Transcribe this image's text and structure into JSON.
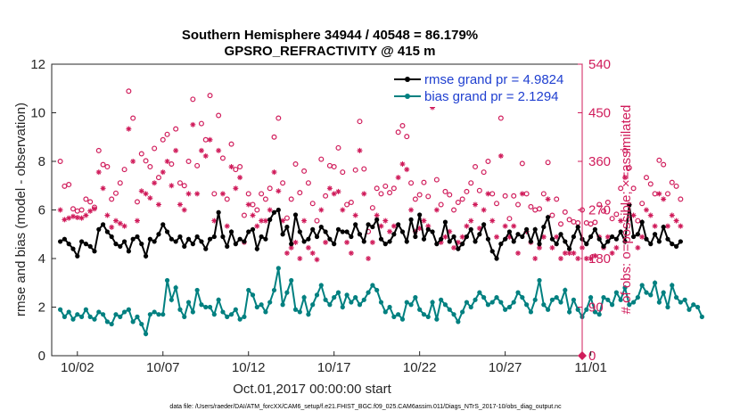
{
  "chart_data": {
    "type": "line",
    "title": "Southern Hemisphere 34944 / 40548 = 86.179%",
    "subtitle": "GPSRO_REFRACTIVITY @ 415 m",
    "xlabel": "Oct.01,2017 00:00:00 start",
    "ylabel_left": "rmse and bias (model - observation)",
    "ylabel_right": "# of obs: o=possible; ×=assimilated",
    "x_ticks": [
      "10/02",
      "10/07",
      "10/12",
      "10/17",
      "10/22",
      "10/27",
      "11/01"
    ],
    "y_left_ticks": [
      "0",
      "2",
      "4",
      "6",
      "8",
      "10",
      "12"
    ],
    "y_right_ticks": [
      "0",
      "90",
      "180",
      "270",
      "360",
      "450",
      "540"
    ],
    "ylim_left": [
      0,
      12
    ],
    "ylim_right": [
      0,
      540
    ],
    "xlim_days": [
      0.5,
      31.5
    ],
    "step_days": 0.25,
    "legend": [
      {
        "label": "rmse grand pr = 4.9824",
        "color": "#000000"
      },
      {
        "label": "bias grand pr = 2.1294",
        "color": "#008080"
      }
    ],
    "colors": {
      "rmse": "#000000",
      "bias": "#008080",
      "obs": "#d01c5b"
    },
    "series": [
      {
        "name": "rmse",
        "values": [
          4.7,
          4.8,
          4.6,
          4.4,
          4.1,
          4.7,
          4.6,
          4.5,
          4.3,
          5.2,
          5.4,
          5.1,
          4.9,
          4.6,
          4.5,
          4.7,
          4.3,
          4.8,
          4.9,
          4.6,
          4.1,
          4.8,
          4.7,
          5.0,
          5.4,
          5.1,
          4.8,
          4.7,
          4.9,
          4.5,
          4.8,
          4.6,
          4.9,
          4.7,
          4.4,
          4.8,
          4.9,
          5.9,
          4.9,
          4.5,
          5.1,
          4.6,
          4.8,
          4.7,
          5.1,
          5.2,
          4.4,
          4.9,
          4.8,
          5.6,
          5.9,
          6.0,
          5.0,
          5.3,
          4.6,
          5.8,
          5.1,
          4.7,
          4.8,
          5.2,
          4.9,
          5.3,
          5.1,
          4.8,
          4.6,
          5.2,
          5.1,
          5.1,
          4.9,
          5.4,
          5.0,
          4.7,
          5.4,
          5.3,
          5.6,
          4.8,
          4.6,
          4.7,
          5.0,
          5.4,
          5.1,
          4.7,
          5.6,
          4.9,
          5.8,
          4.8,
          5.2,
          5.1,
          4.6,
          4.8,
          5.5,
          4.7,
          4.9,
          4.4,
          4.6,
          4.9,
          5.2,
          4.7,
          5.0,
          5.4,
          4.8,
          4.3,
          4.0,
          4.6,
          4.8,
          5.1,
          4.7,
          5.0,
          4.9,
          5.2,
          4.7,
          5.2,
          4.6,
          5.3,
          5.7,
          4.8,
          4.6,
          5.0,
          4.7,
          4.4,
          4.9,
          5.3,
          4.8,
          4.6,
          4.9,
          5.2,
          4.8,
          4.5,
          4.7,
          4.9,
          4.8,
          5.1,
          4.7,
          6.2,
          4.9,
          5.0,
          5.5,
          4.8,
          4.6,
          5.0,
          4.7,
          5.3,
          4.8,
          4.6,
          4.5,
          4.7
        ]
      },
      {
        "name": "bias",
        "values": [
          1.9,
          1.6,
          1.8,
          1.5,
          1.7,
          1.6,
          1.9,
          1.6,
          1.5,
          1.8,
          1.7,
          1.4,
          1.3,
          1.7,
          1.6,
          1.8,
          1.9,
          1.4,
          1.6,
          1.3,
          0.9,
          1.7,
          1.8,
          1.7,
          1.7,
          3.1,
          2.3,
          2.8,
          1.9,
          1.6,
          2.2,
          1.8,
          2.7,
          2.1,
          2.0,
          2.0,
          1.7,
          2.3,
          1.8,
          1.6,
          1.7,
          1.9,
          1.5,
          1.6,
          2.7,
          2.5,
          2.0,
          2.1,
          1.8,
          2.2,
          2.7,
          3.6,
          2.1,
          2.6,
          3.1,
          1.9,
          1.8,
          2.4,
          1.7,
          2.1,
          2.5,
          2.9,
          2.3,
          2.1,
          2.4,
          2.6,
          2.0,
          2.5,
          2.2,
          2.4,
          2.1,
          2.3,
          2.6,
          2.9,
          2.7,
          2.2,
          1.8,
          2.0,
          1.6,
          1.7,
          1.5,
          2.2,
          2.1,
          2.4,
          1.9,
          1.7,
          1.6,
          2.2,
          1.5,
          2.3,
          2.1,
          1.9,
          1.7,
          1.4,
          1.8,
          2.2,
          2.0,
          2.3,
          2.6,
          2.4,
          2.1,
          2.2,
          2.4,
          2.2,
          1.9,
          2.0,
          2.2,
          2.6,
          2.4,
          2.1,
          1.8,
          2.3,
          3.1,
          2.1,
          1.9,
          2.3,
          2.4,
          2.2,
          2.7,
          1.8,
          2.3,
          1.9,
          1.6,
          1.9,
          2.4,
          1.8,
          1.7,
          2.4,
          2.3,
          2.1,
          2.6,
          2.3,
          2.8,
          2.1,
          2.2,
          2.4,
          2.9,
          2.6,
          2.5,
          3.0,
          2.2,
          2.6,
          2.0,
          2.9,
          2.4,
          2.2,
          2.3,
          1.9,
          2.1,
          2.0,
          1.6
        ]
      },
      {
        "name": "possible_obs",
        "values": [
          360,
          314,
          317,
          272,
          268,
          270,
          290,
          285,
          275,
          380,
          354,
          350,
          290,
          301,
          320,
          345,
          490,
          440,
          285,
          374,
          361,
          350,
          384,
          330,
          400,
          410,
          355,
          420,
          320,
          315,
          360,
          475,
          352,
          430,
          400,
          482,
          300,
          445,
          366,
          290,
          392,
          345,
          350,
          260,
          300,
          280,
          270,
          300,
          290,
          310,
          405,
          440,
          320,
          255,
          290,
          355,
          302,
          342,
          320,
          282,
          250,
          364,
          296,
          352,
          350,
          385,
          340,
          280,
          284,
          344,
          434,
          346,
          230,
          274,
          310,
          300,
          314,
          302,
          310,
          414,
          426,
          406,
          320,
          290,
          298,
          321,
          295,
          482,
          326,
          280,
          304,
          298,
          270,
          284,
          290,
          304,
          320,
          350,
          306,
          340,
          360,
          300,
          282,
          440,
          296,
          254,
          296,
          280,
          356,
          300,
          276,
          270,
          272,
          300,
          358,
          260,
          290,
          244,
          266,
          252,
          248,
          246,
          270,
          246,
          244,
          247,
          280,
          268,
          284,
          254,
          262,
          310,
          380,
          348,
          310,
          250,
          282,
          330,
          318,
          300,
          362,
          354,
          300,
          321,
          314,
          290
        ]
      },
      {
        "name": "assimilated_obs",
        "values": [
          270,
          252,
          255,
          258,
          256,
          255,
          260,
          268,
          272,
          340,
          310,
          260,
          238,
          250,
          245,
          240,
          420,
          360,
          250,
          305,
          300,
          292,
          320,
          280,
          340,
          360,
          315,
          380,
          280,
          270,
          300,
          428,
          300,
          380,
          370,
          400,
          250,
          380,
          300,
          240,
          350,
          310,
          330,
          210,
          280,
          260,
          240,
          250,
          250,
          270,
          340,
          305,
          250,
          190,
          200,
          210,
          180,
          250,
          200,
          190,
          178,
          270,
          210,
          310,
          300,
          304,
          270,
          210,
          190,
          260,
          380,
          300,
          180,
          210,
          260,
          240,
          250,
          230,
          240,
          330,
          355,
          345,
          270,
          230,
          236,
          250,
          240,
          460,
          270,
          210,
          220,
          230,
          200,
          210,
          220,
          240,
          250,
          280,
          236,
          270,
          300,
          250,
          220,
          370,
          240,
          220,
          240,
          190,
          300,
          230,
          210,
          180,
          200,
          220,
          290,
          200,
          220,
          180,
          190,
          190,
          190,
          180,
          200,
          180,
          180,
          185,
          220,
          200,
          220,
          190,
          200,
          250,
          330,
          280,
          260,
          200,
          220,
          270,
          260,
          240,
          300,
          290,
          240,
          260,
          250,
          240
        ]
      }
    ]
  },
  "footnote": "data file: /Users/raeder/DAI/ATM_forcXX/CAM6_setup/f.e21.FHIST_BGC.f09_025.CAM6assim.011/Diags_NTrS_2017-10/obs_diag_output.nc"
}
